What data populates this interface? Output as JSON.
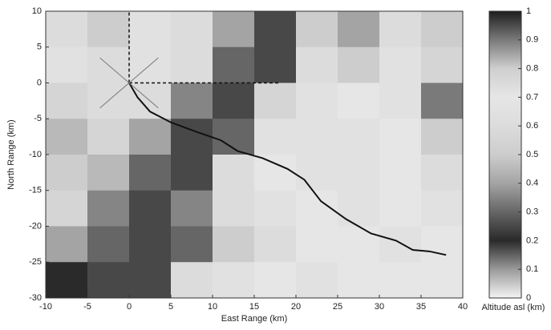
{
  "chart_data": {
    "type": "heatmap",
    "x_label": "East Range (km)",
    "y_label": "North Range (km)",
    "colorbar_label": "Altitude asl (km)",
    "xlim": [
      -10,
      40
    ],
    "ylim": [
      -30,
      10
    ],
    "xticks": [
      -10,
      -5,
      0,
      5,
      10,
      15,
      20,
      25,
      30,
      35,
      40
    ],
    "yticks": [
      -30,
      -25,
      -20,
      -15,
      -10,
      -5,
      0,
      5,
      10
    ],
    "clim": [
      0,
      1
    ],
    "cticks": [
      0,
      0.1,
      0.2,
      0.3,
      0.4,
      0.5,
      0.6,
      0.7,
      0.8,
      0.9,
      1
    ],
    "colormap": [
      "#f4f4f4",
      "#9a9a9a",
      "#2a2a2a",
      "#666666",
      "#a4a4a4",
      "#cdcdcd",
      "#dcdcdc",
      "#e6e6e6",
      "#cfcfcf",
      "#7a7a7a",
      "#1e1e1e"
    ],
    "z": [
      [
        0.6,
        0.5,
        0.65,
        0.6,
        0.4,
        0.25,
        0.5,
        0.4,
        0.6,
        0.5
      ],
      [
        0.65,
        0.6,
        0.65,
        0.6,
        0.3,
        0.25,
        0.6,
        0.5,
        0.65,
        0.55
      ],
      [
        0.55,
        0.6,
        0.6,
        0.35,
        0.25,
        0.55,
        0.65,
        0.7,
        0.65,
        0.9
      ],
      [
        0.45,
        0.55,
        0.4,
        0.25,
        0.3,
        0.65,
        0.72,
        0.72,
        0.7,
        0.5
      ],
      [
        0.5,
        0.45,
        0.3,
        0.25,
        0.6,
        0.7,
        0.72,
        0.72,
        0.7,
        0.6
      ],
      [
        0.55,
        0.35,
        0.25,
        0.35,
        0.6,
        0.65,
        0.7,
        0.72,
        0.7,
        0.65
      ],
      [
        0.4,
        0.3,
        0.25,
        0.3,
        0.5,
        0.6,
        0.7,
        0.7,
        0.72,
        0.7
      ],
      [
        0.2,
        0.25,
        0.25,
        0.6,
        0.65,
        0.7,
        0.72,
        0.7,
        0.7,
        0.7
      ]
    ],
    "series": [
      {
        "color": "#111111",
        "style": "solid",
        "x": [
          0,
          1,
          2.5,
          5,
          8,
          11,
          13,
          16,
          19,
          21,
          23,
          26,
          29,
          32,
          34,
          36,
          38
        ],
        "y": [
          0,
          -2,
          -4,
          -5.5,
          -6.8,
          -8,
          -9.5,
          -10.5,
          -12,
          -13.5,
          -16.5,
          -19,
          -21,
          -22,
          -23.3,
          -23.5,
          -24
        ]
      },
      {
        "color": "#111111",
        "style": "dashed",
        "x": [
          0,
          0
        ],
        "y": [
          0,
          10
        ]
      },
      {
        "color": "#111111",
        "style": "dashed",
        "x": [
          0,
          18
        ],
        "y": [
          0,
          0
        ]
      },
      {
        "color": "#777777",
        "style": "thin",
        "x": [
          -3.5,
          3.5
        ],
        "y": [
          3.5,
          -3.5
        ]
      },
      {
        "color": "#777777",
        "style": "thin",
        "x": [
          -3.5,
          3.5
        ],
        "y": [
          -3.5,
          3.5
        ]
      }
    ]
  }
}
